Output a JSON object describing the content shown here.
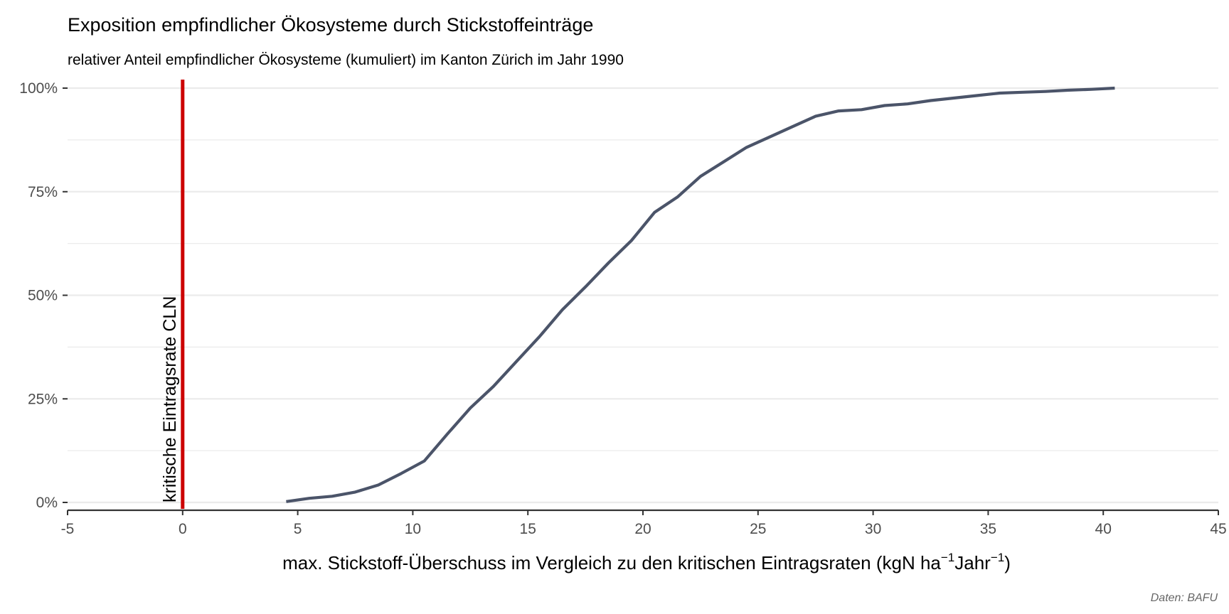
{
  "title": "Exposition empfindlicher Ökosysteme durch Stickstoffeinträge",
  "subtitle": "relativer Anteil empfindlicher Ökosysteme (kumuliert) im Kanton Zürich im Jahr 1990",
  "caption": "Daten: BAFU",
  "xlabel_main": "max. Stickstoff-Überschuss im Vergleich zu den kritischen Eintragsraten (kgN ha",
  "xlabel_sup1": "−1",
  "xlabel_mid": "Jahr",
  "xlabel_sup2": "−1",
  "xlabel_end": ")",
  "colors": {
    "line": "#4b5469",
    "critical_line": "#cc0000",
    "grid": "#ebebeb",
    "axis": "#333333",
    "tick_text": "#4d4d4d"
  },
  "chart_data": {
    "type": "line",
    "title": "Exposition empfindlicher Ökosysteme durch Stickstoffeinträge",
    "subtitle": "relativer Anteil empfindlicher Ökosysteme (kumuliert) im Kanton Zürich im Jahr 1990",
    "xlabel": "max. Stickstoff-Überschuss im Vergleich zu den kritischen Eintragsraten (kgN ha−1Jahr−1)",
    "ylabel": "",
    "xlim": [
      -5,
      45
    ],
    "ylim": [
      0,
      1
    ],
    "x_ticks": [
      -5,
      0,
      5,
      10,
      15,
      20,
      25,
      30,
      35,
      40,
      45
    ],
    "x_tick_labels": [
      "-5",
      "0",
      "5",
      "10",
      "15",
      "20",
      "25",
      "30",
      "35",
      "40",
      "45"
    ],
    "y_ticks": [
      0,
      0.25,
      0.5,
      0.75,
      1.0
    ],
    "y_tick_labels": [
      "0%",
      "25%",
      "50%",
      "75%",
      "100%"
    ],
    "grid": true,
    "x": [
      4.5,
      5.5,
      6.5,
      7.5,
      8.5,
      9.5,
      10.5,
      11.5,
      12.5,
      13.5,
      14.5,
      15.5,
      16.5,
      17.5,
      18.5,
      19.5,
      20.5,
      21.5,
      22.5,
      23.5,
      24.5,
      25.5,
      26.5,
      27.5,
      28.5,
      29.5,
      30.5,
      31.5,
      32.5,
      33.5,
      34.5,
      35.5,
      36.5,
      37.5,
      38.5,
      39.5,
      40.5
    ],
    "values": [
      0.002,
      0.01,
      0.015,
      0.025,
      0.042,
      0.07,
      0.1,
      0.165,
      0.228,
      0.28,
      0.34,
      0.4,
      0.465,
      0.52,
      0.578,
      0.632,
      0.7,
      0.737,
      0.787,
      0.822,
      0.857,
      0.882,
      0.907,
      0.932,
      0.945,
      0.948,
      0.958,
      0.962,
      0.97,
      0.976,
      0.982,
      0.988,
      0.99,
      0.992,
      0.995,
      0.997,
      1.0
    ],
    "annotations": [
      {
        "x": 0,
        "label": "kritische Eintragsrate CLN",
        "kind": "vertical-line"
      }
    ]
  }
}
